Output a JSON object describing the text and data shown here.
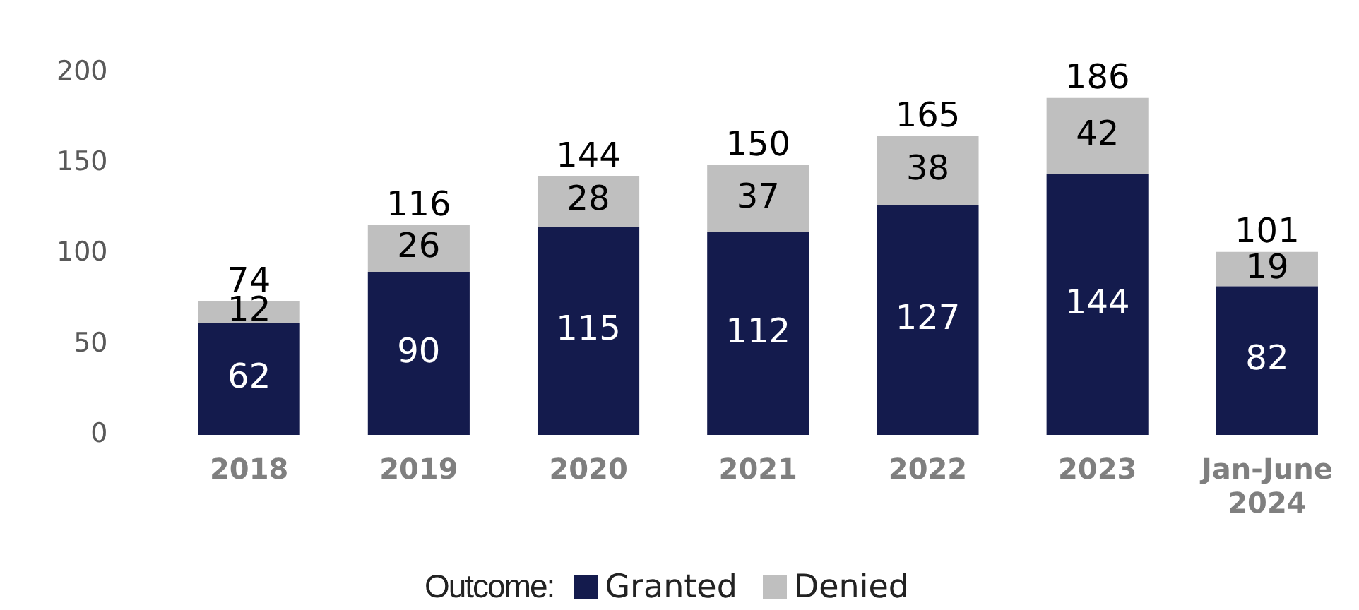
{
  "chart_data": {
    "type": "bar",
    "stacked": true,
    "categories": [
      "2018",
      "2019",
      "2020",
      "2021",
      "2022",
      "2023",
      "Jan-June 2024"
    ],
    "series": [
      {
        "name": "Granted",
        "color": "#141b4d",
        "values": [
          62,
          90,
          115,
          112,
          127,
          144,
          82
        ]
      },
      {
        "name": "Denied",
        "color": "#bfbfbf",
        "values": [
          12,
          26,
          28,
          37,
          38,
          42,
          19
        ]
      }
    ],
    "data_labels": true,
    "totals": [
      "74",
      "116",
      "144",
      "150",
      "165",
      "186",
      "101"
    ],
    "ylim": [
      0,
      200
    ],
    "yticks": [
      0,
      50,
      100,
      150,
      200
    ],
    "grid": false,
    "legend": "bottom",
    "legend_title": "Outcome:"
  }
}
